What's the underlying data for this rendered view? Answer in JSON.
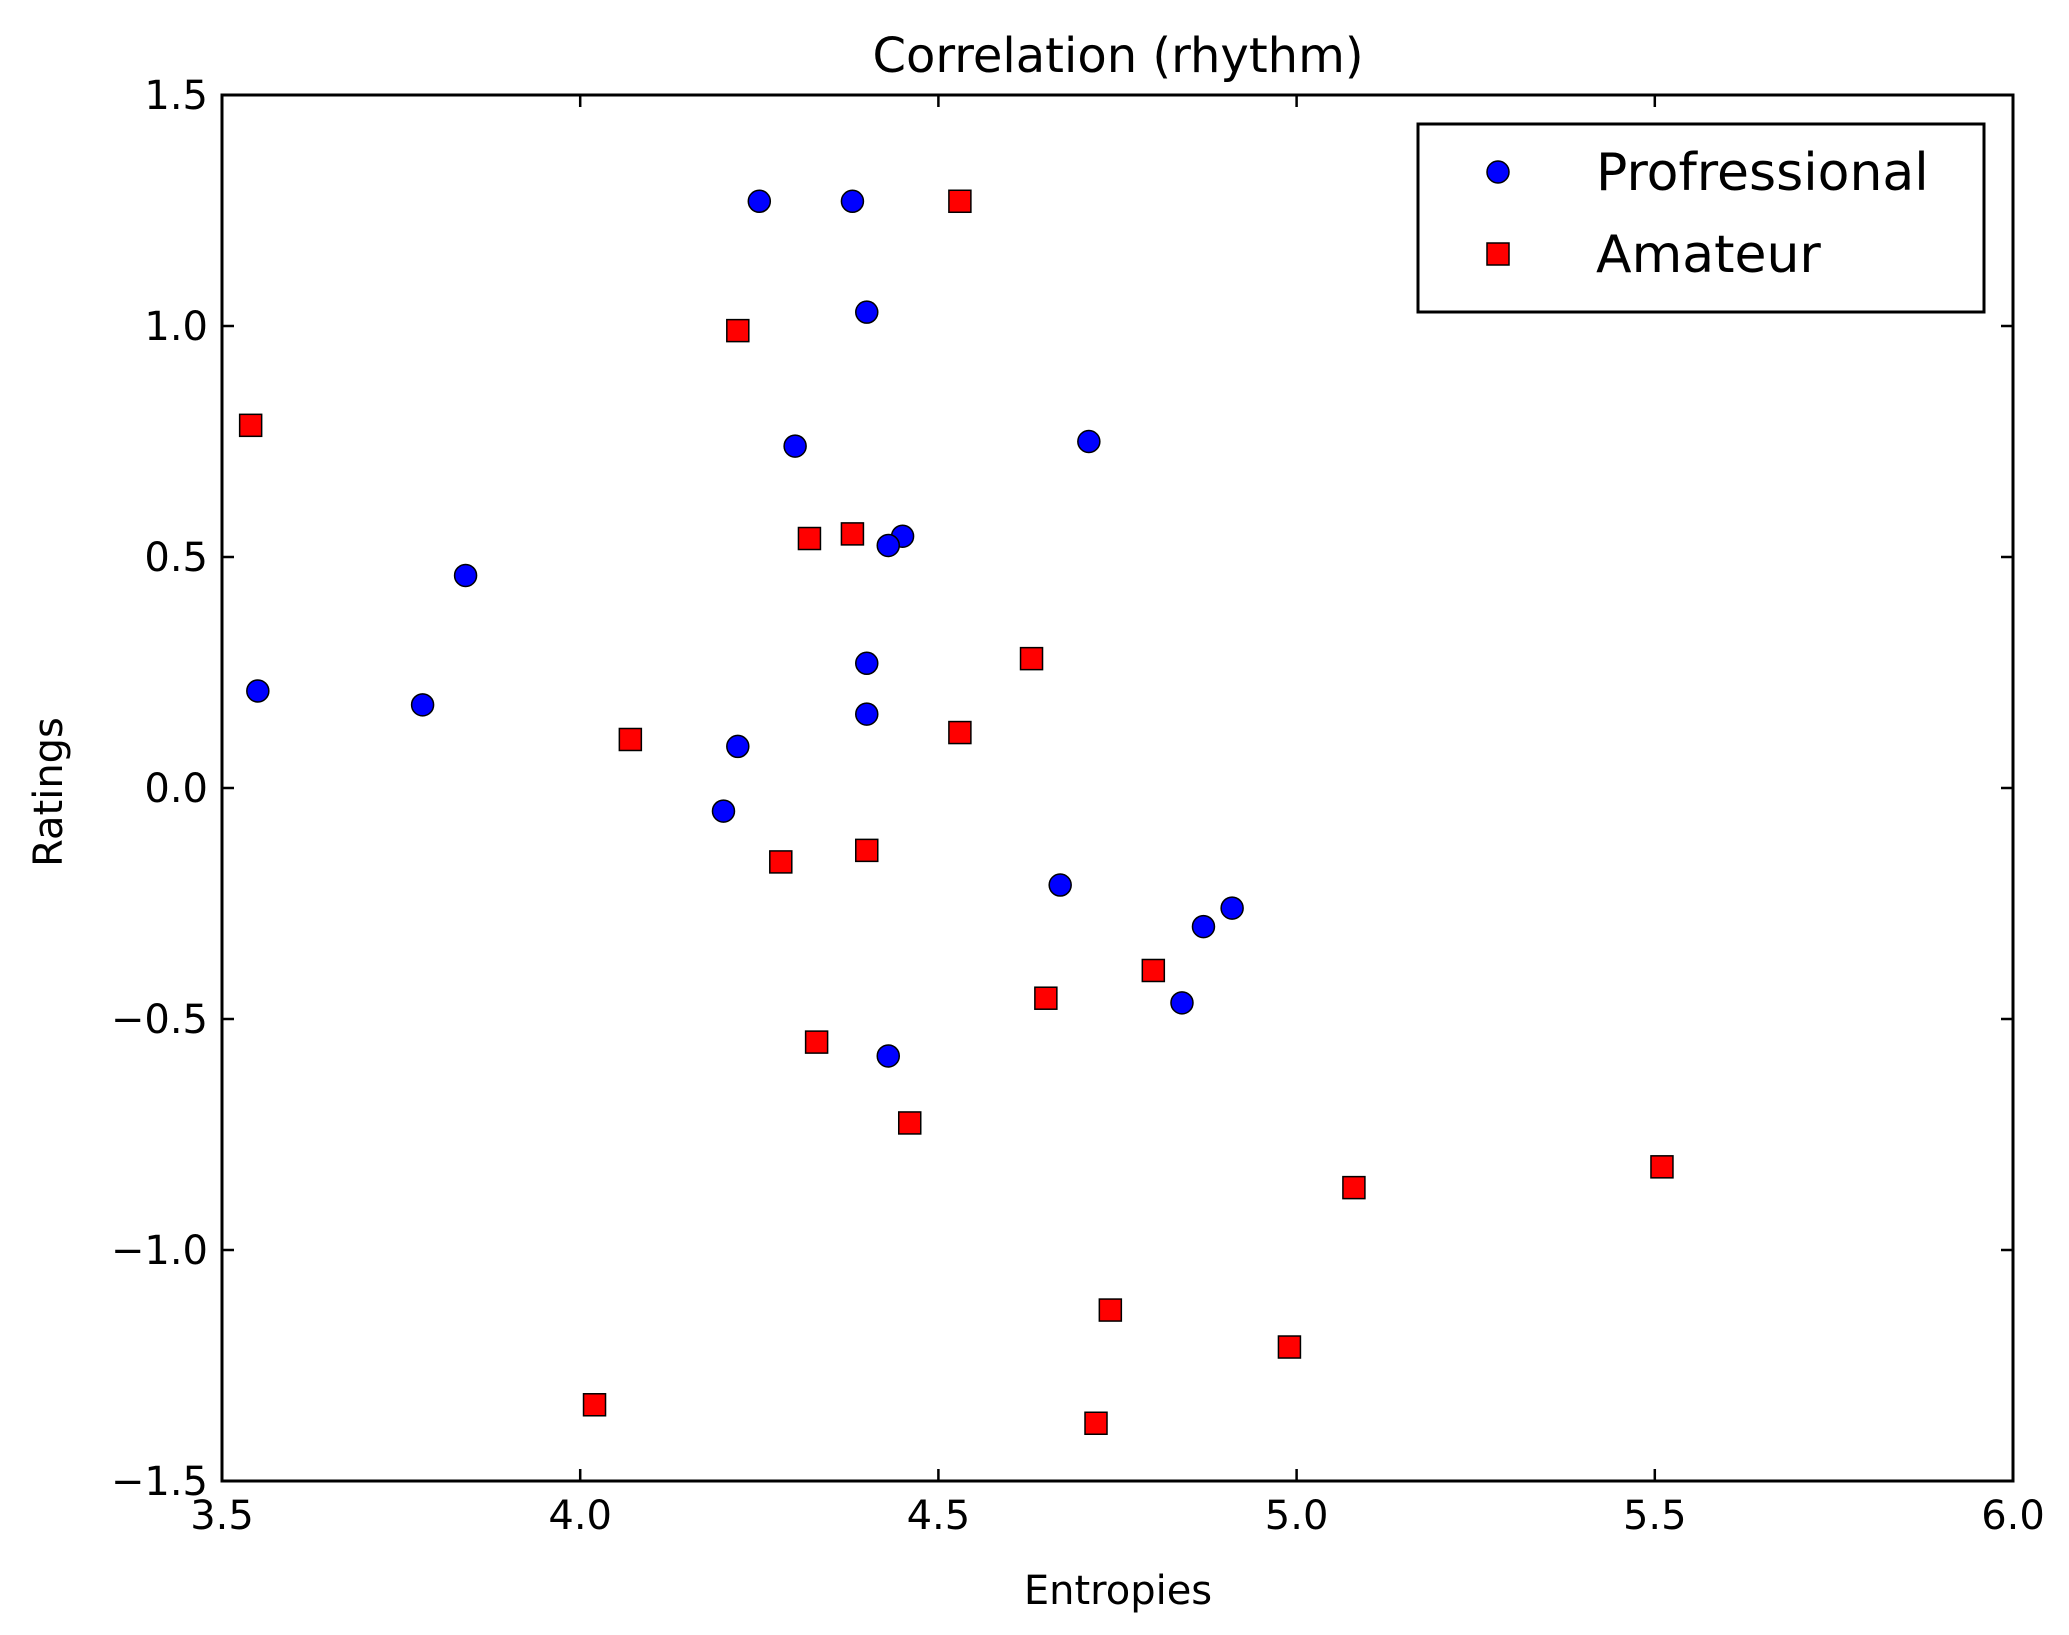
{
  "chart_data": {
    "type": "scatter",
    "title": "Correlation (rhythm)",
    "xlabel": "Entropies",
    "ylabel": "Ratings",
    "xlim": [
      3.5,
      6.0
    ],
    "ylim": [
      -1.5,
      1.5
    ],
    "x_ticks": [
      3.5,
      4.0,
      4.5,
      5.0,
      5.5,
      6.0
    ],
    "y_ticks": [
      -1.5,
      -1.0,
      -0.5,
      0.0,
      0.5,
      1.0,
      1.5
    ],
    "x_tick_labels": [
      "3.5",
      "4.0",
      "4.5",
      "5.0",
      "5.5",
      "6.0"
    ],
    "y_tick_labels": [
      "−1.5",
      "−1.0",
      "−0.5",
      "0.0",
      "0.5",
      "1.0",
      "1.5"
    ],
    "grid": false,
    "legend_position": "top-right",
    "series": [
      {
        "name": "Profressional",
        "marker": "circle",
        "color": "#0000ff",
        "points": [
          [
            4.25,
            1.27
          ],
          [
            4.38,
            1.27
          ],
          [
            4.4,
            1.03
          ],
          [
            4.3,
            0.74
          ],
          [
            4.71,
            0.75
          ],
          [
            4.45,
            0.545
          ],
          [
            4.43,
            0.525
          ],
          [
            3.84,
            0.46
          ],
          [
            3.55,
            0.21
          ],
          [
            3.78,
            0.18
          ],
          [
            4.4,
            0.27
          ],
          [
            4.4,
            0.16
          ],
          [
            4.22,
            0.09
          ],
          [
            4.2,
            -0.05
          ],
          [
            4.67,
            -0.21
          ],
          [
            4.87,
            -0.3
          ],
          [
            4.91,
            -0.26
          ],
          [
            4.84,
            -0.465
          ],
          [
            4.43,
            -0.58
          ]
        ]
      },
      {
        "name": "Amateur",
        "marker": "square",
        "color": "#ff0000",
        "points": [
          [
            4.53,
            1.27
          ],
          [
            4.22,
            0.99
          ],
          [
            3.54,
            0.785
          ],
          [
            4.38,
            0.55
          ],
          [
            4.32,
            0.54
          ],
          [
            4.63,
            0.28
          ],
          [
            4.07,
            0.105
          ],
          [
            4.53,
            0.12
          ],
          [
            4.28,
            -0.16
          ],
          [
            4.4,
            -0.135
          ],
          [
            4.8,
            -0.395
          ],
          [
            4.65,
            -0.455
          ],
          [
            4.33,
            -0.55
          ],
          [
            4.46,
            -0.725
          ],
          [
            5.51,
            -0.82
          ],
          [
            5.08,
            -0.865
          ],
          [
            4.74,
            -1.13
          ],
          [
            4.99,
            -1.21
          ],
          [
            4.02,
            -1.335
          ],
          [
            4.72,
            -1.375
          ]
        ]
      }
    ]
  }
}
